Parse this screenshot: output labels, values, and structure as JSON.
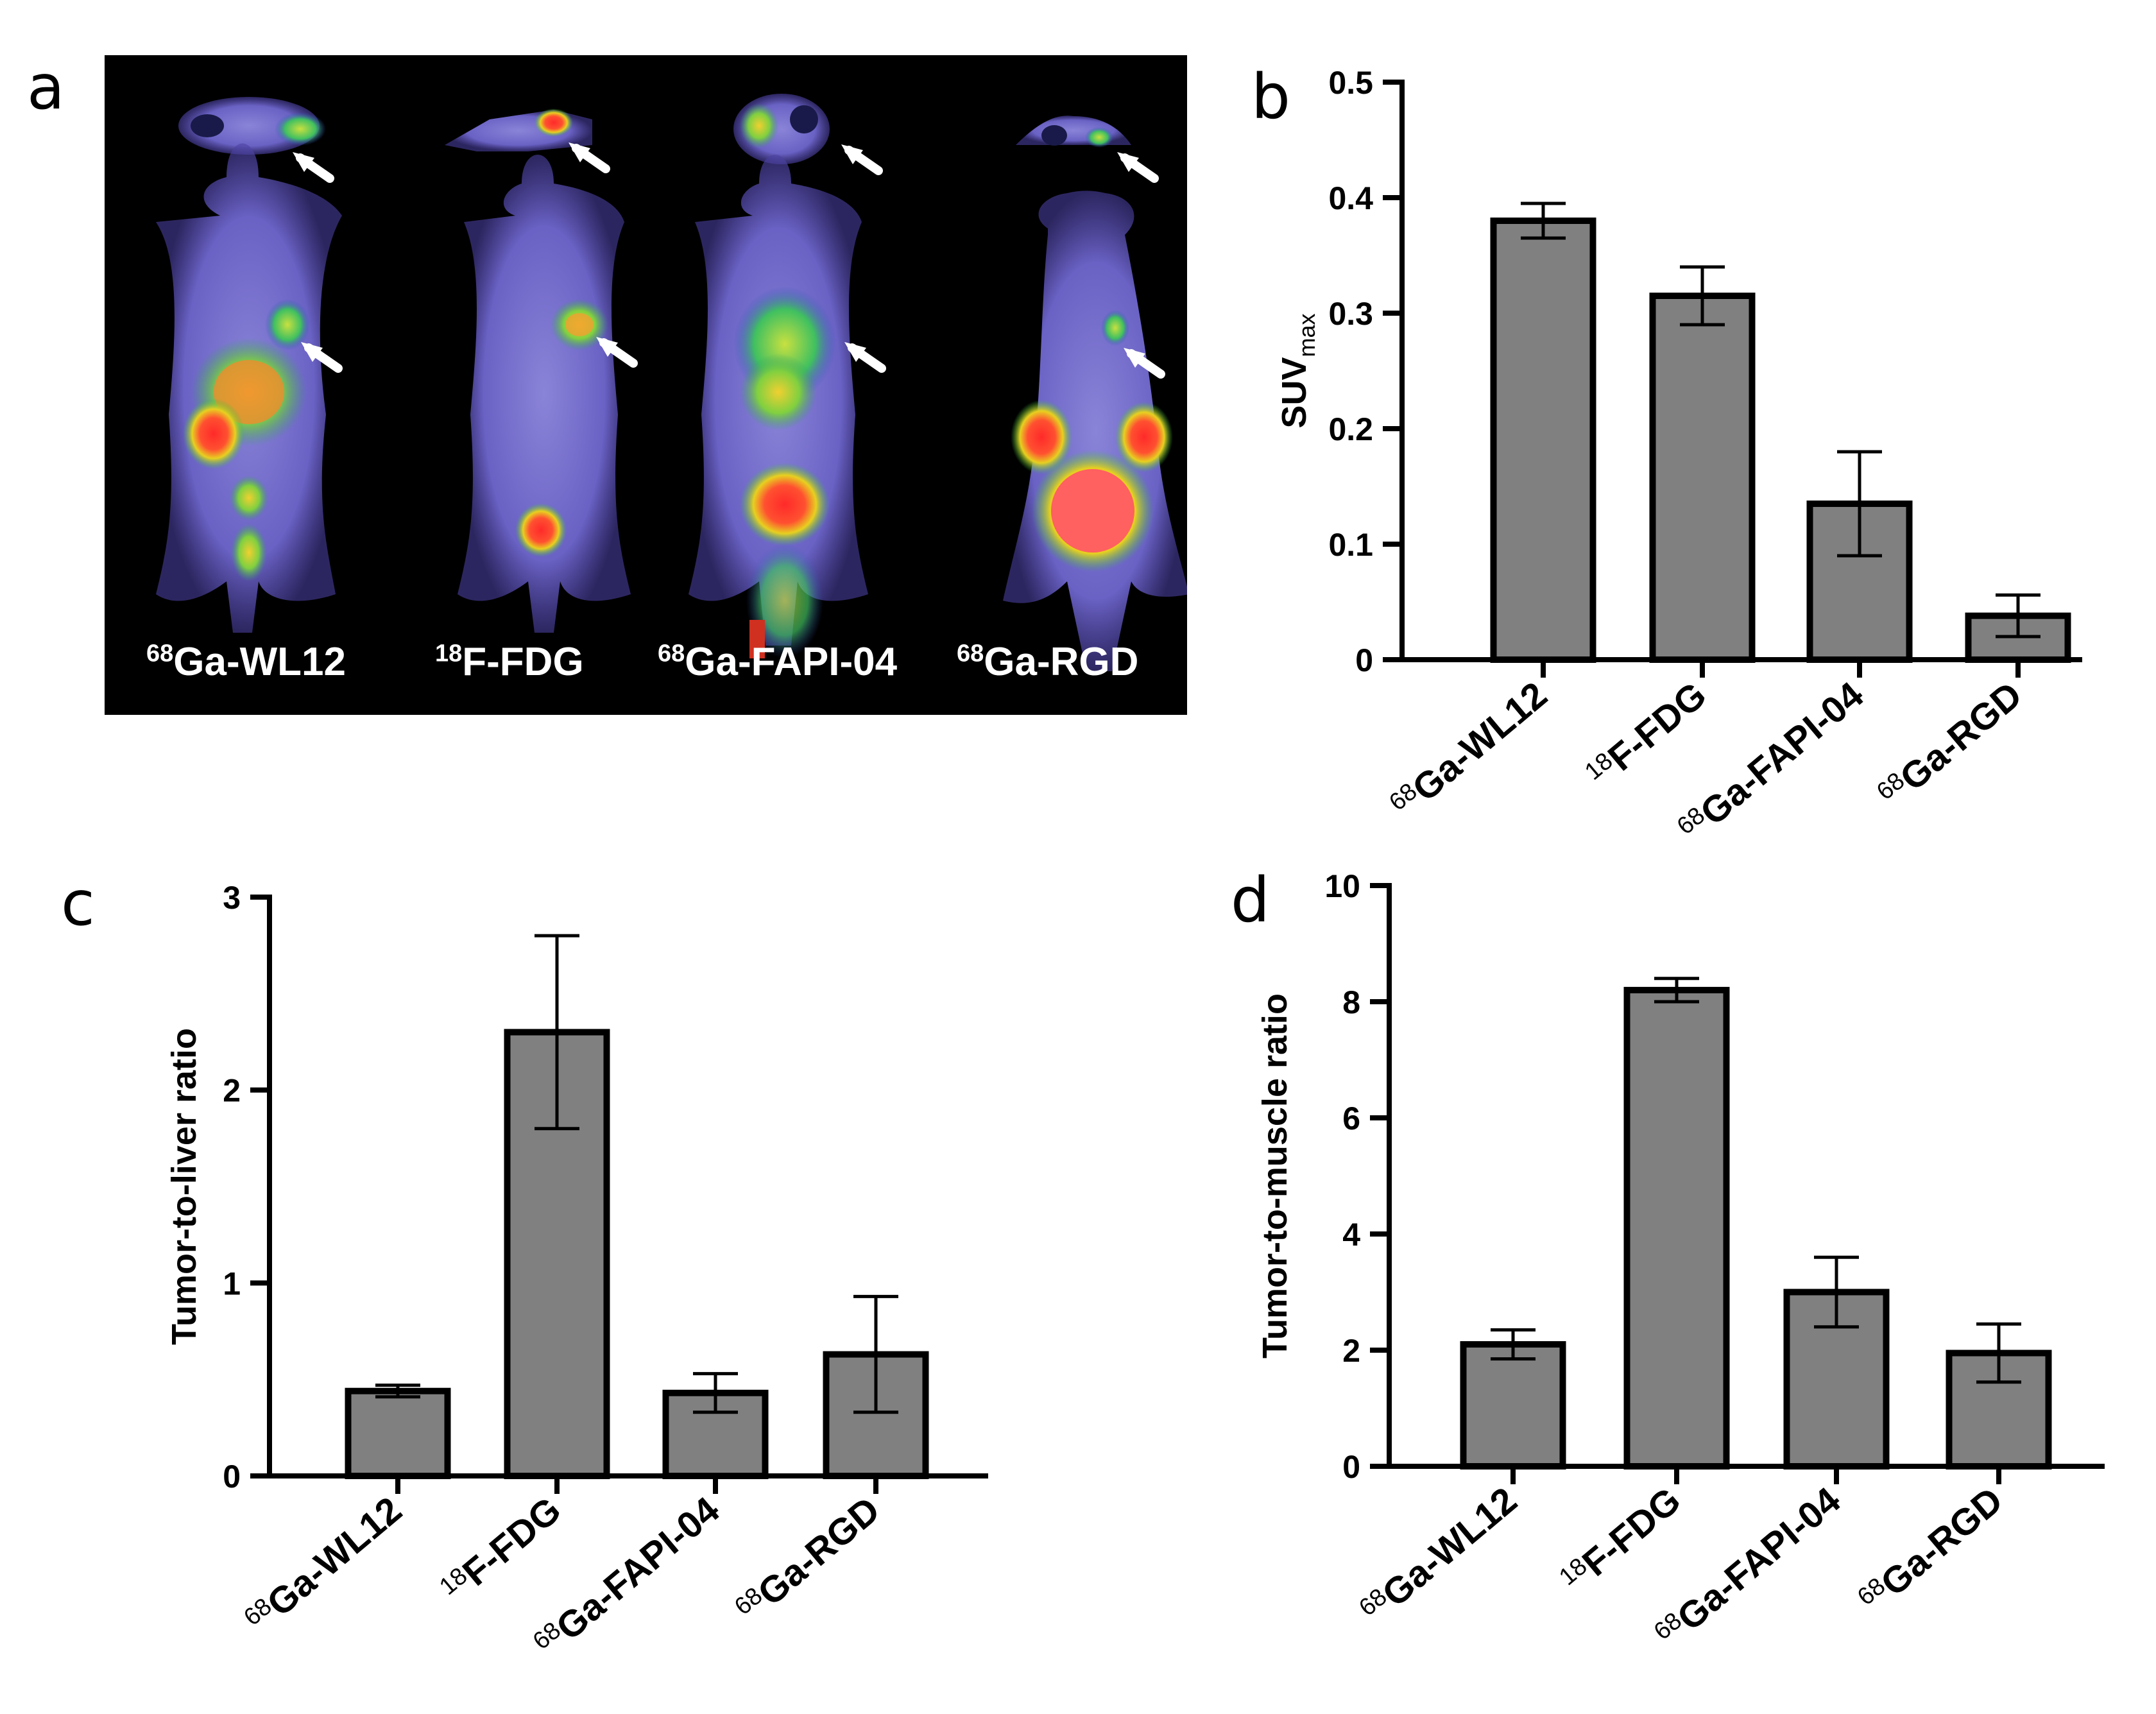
{
  "panels": {
    "a": "a",
    "b": "b",
    "c": "c",
    "d": "d"
  },
  "imaging_panel": {
    "tracers": [
      {
        "iso": "68",
        "name": "Ga-WL12"
      },
      {
        "iso": "18",
        "name": "F-FDG"
      },
      {
        "iso": "68",
        "name": "Ga-FAPI-04"
      },
      {
        "iso": "68",
        "name": "Ga-RGD"
      }
    ]
  },
  "colors": {
    "bar_fill": "#808080",
    "bar_stroke": "#000000",
    "pet_background": "#000000",
    "arrow": "#ffffff"
  },
  "chart_data": [
    {
      "id": "b",
      "type": "bar",
      "title": "",
      "xlabel": "",
      "ylabel": "SUV",
      "ylabel_sub": "max",
      "categories": [
        {
          "iso": "68",
          "name": "Ga-WL12"
        },
        {
          "iso": "18",
          "name": "F-FDG"
        },
        {
          "iso": "68",
          "name": "Ga-FAPI-04"
        },
        {
          "iso": "68",
          "name": "Ga-RGD"
        }
      ],
      "values": [
        0.38,
        0.315,
        0.135,
        0.038
      ],
      "errors": [
        0.015,
        0.025,
        0.045,
        0.018
      ],
      "ylim": [
        0,
        0.5
      ],
      "yticks": [
        0,
        0.1,
        0.2,
        0.3,
        0.4,
        0.5
      ],
      "ytick_labels": [
        "0",
        "0.1",
        "0.2",
        "0.3",
        "0.4",
        "0.5"
      ],
      "grid": false
    },
    {
      "id": "c",
      "type": "bar",
      "title": "",
      "xlabel": "",
      "ylabel": "Tumor-to-liver ratio",
      "ylabel_sub": "",
      "categories": [
        {
          "iso": "68",
          "name": "Ga-WL12"
        },
        {
          "iso": "18",
          "name": "F-FDG"
        },
        {
          "iso": "68",
          "name": "Ga-FAPI-04"
        },
        {
          "iso": "68",
          "name": "Ga-RGD"
        }
      ],
      "values": [
        0.44,
        2.3,
        0.43,
        0.63
      ],
      "errors": [
        0.03,
        0.5,
        0.1,
        0.3
      ],
      "ylim": [
        0,
        3
      ],
      "yticks": [
        0,
        1,
        2,
        3
      ],
      "ytick_labels": [
        "0",
        "1",
        "2",
        "3"
      ],
      "grid": false
    },
    {
      "id": "d",
      "type": "bar",
      "title": "",
      "xlabel": "",
      "ylabel": "Tumor-to-muscle ratio",
      "ylabel_sub": "",
      "categories": [
        {
          "iso": "68",
          "name": "Ga-WL12"
        },
        {
          "iso": "18",
          "name": "F-FDG"
        },
        {
          "iso": "68",
          "name": "Ga-FAPI-04"
        },
        {
          "iso": "68",
          "name": "Ga-RGD"
        }
      ],
      "values": [
        2.1,
        8.2,
        3.0,
        1.95
      ],
      "errors": [
        0.25,
        0.2,
        0.6,
        0.5
      ],
      "ylim": [
        0,
        10
      ],
      "yticks": [
        0,
        2,
        4,
        6,
        8,
        10
      ],
      "ytick_labels": [
        "0",
        "2",
        "4",
        "6",
        "8",
        "10"
      ],
      "grid": false
    }
  ]
}
